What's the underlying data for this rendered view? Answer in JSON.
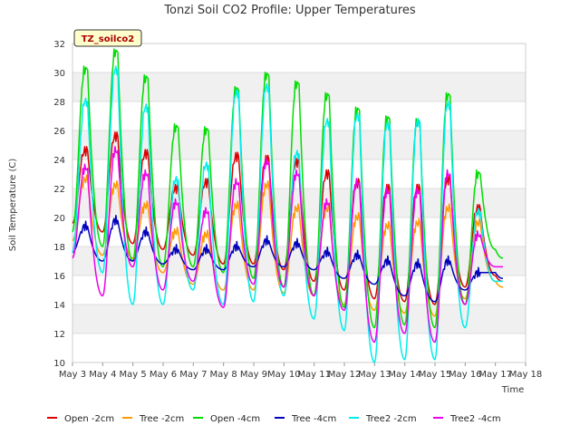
{
  "chart_data": {
    "type": "line",
    "title": "Tonzi Soil CO2 Profile: Upper Temperatures",
    "xlabel": "Time",
    "ylabel": "Soil Temperature (C)",
    "badge": "TZ_soilco2",
    "xlim": [
      "2024-05-03",
      "2024-05-18"
    ],
    "ylim": [
      10,
      32
    ],
    "x_ticks": [
      "May 3",
      "May 4",
      "May 5",
      "May 6",
      "May 7",
      "May 8",
      "May 9",
      "May 10",
      "May 11",
      "May 12",
      "May 13",
      "May 14",
      "May 15",
      "May 16",
      "May 17",
      "May 18"
    ],
    "y_ticks": [
      10,
      12,
      14,
      16,
      18,
      20,
      22,
      24,
      26,
      28,
      30,
      32
    ],
    "grid": "horizontal bands",
    "legend_position": "bottom",
    "x": [
      "2024-05-03 00:00",
      "2024-05-03 12:00",
      "2024-05-04 00:00",
      "2024-05-04 12:00",
      "2024-05-05 00:00",
      "2024-05-05 12:00",
      "2024-05-06 00:00",
      "2024-05-06 12:00",
      "2024-05-07 00:00",
      "2024-05-07 12:00",
      "2024-05-08 00:00",
      "2024-05-08 12:00",
      "2024-05-09 00:00",
      "2024-05-09 12:00",
      "2024-05-10 00:00",
      "2024-05-10 12:00",
      "2024-05-11 00:00",
      "2024-05-11 12:00",
      "2024-05-12 00:00",
      "2024-05-12 12:00",
      "2024-05-13 00:00",
      "2024-05-13 12:00",
      "2024-05-14 00:00",
      "2024-05-14 12:00",
      "2024-05-15 00:00",
      "2024-05-15 12:00",
      "2024-05-16 00:00",
      "2024-05-16 12:00",
      "2024-05-17 00:00",
      "2024-05-17 06:00"
    ],
    "series": [
      {
        "name": "Open -2cm",
        "color": "#dd0000",
        "values": [
          19.6,
          24.6,
          19.0,
          25.6,
          18.2,
          24.4,
          17.8,
          22.0,
          17.4,
          22.4,
          16.8,
          24.2,
          16.8,
          24.0,
          16.4,
          23.8,
          15.6,
          23.0,
          15.0,
          22.4,
          14.4,
          22.0,
          14.2,
          22.0,
          14.0,
          22.6,
          15.2,
          20.6,
          16.0,
          15.6
        ]
      },
      {
        "name": "Tree -2cm",
        "color": "#ff9900",
        "values": [
          18.4,
          22.6,
          17.4,
          22.2,
          17.2,
          20.8,
          16.2,
          19.0,
          15.4,
          18.8,
          15.0,
          20.8,
          15.0,
          22.2,
          14.8,
          20.6,
          14.6,
          20.6,
          14.0,
          20.0,
          13.6,
          19.4,
          13.4,
          19.6,
          13.2,
          20.6,
          14.4,
          19.6,
          15.6,
          15.2
        ]
      },
      {
        "name": "Open -4cm",
        "color": "#00dd00",
        "values": [
          19.0,
          30.2,
          18.0,
          31.4,
          17.0,
          29.6,
          16.6,
          26.2,
          16.6,
          26.0,
          16.2,
          28.8,
          15.8,
          29.8,
          15.2,
          29.2,
          14.6,
          28.4,
          13.8,
          27.4,
          12.4,
          26.8,
          12.6,
          26.6,
          12.4,
          28.4,
          14.0,
          23.0,
          17.8,
          17.2
        ]
      },
      {
        "name": "Tree -4cm",
        "color": "#0000bb",
        "values": [
          17.6,
          19.4,
          17.0,
          19.8,
          17.0,
          19.0,
          16.8,
          17.8,
          16.4,
          17.8,
          16.4,
          18.0,
          16.6,
          18.4,
          16.6,
          18.2,
          16.4,
          17.6,
          15.8,
          17.4,
          15.4,
          17.0,
          14.6,
          16.8,
          14.2,
          17.0,
          15.0,
          16.2,
          16.2,
          15.8
        ]
      },
      {
        "name": "Tree2 -2cm",
        "color": "#00eeee",
        "values": [
          17.6,
          28.0,
          16.2,
          30.2,
          14.0,
          27.6,
          14.0,
          22.6,
          15.0,
          23.6,
          14.0,
          28.6,
          14.2,
          29.0,
          14.6,
          24.4,
          13.0,
          26.6,
          12.2,
          27.0,
          10.0,
          26.4,
          10.2,
          26.6,
          10.2,
          27.8,
          12.4,
          20.4,
          15.6,
          15.6
        ]
      },
      {
        "name": "Tree2 -4cm",
        "color": "#ee00ee",
        "values": [
          17.2,
          23.4,
          14.6,
          24.6,
          16.6,
          23.0,
          15.0,
          21.0,
          15.6,
          20.4,
          13.8,
          22.4,
          15.4,
          23.8,
          15.2,
          23.0,
          14.6,
          21.0,
          13.6,
          22.4,
          11.4,
          21.8,
          12.0,
          21.8,
          11.4,
          23.0,
          14.0,
          18.8,
          16.6,
          16.6
        ]
      }
    ]
  }
}
